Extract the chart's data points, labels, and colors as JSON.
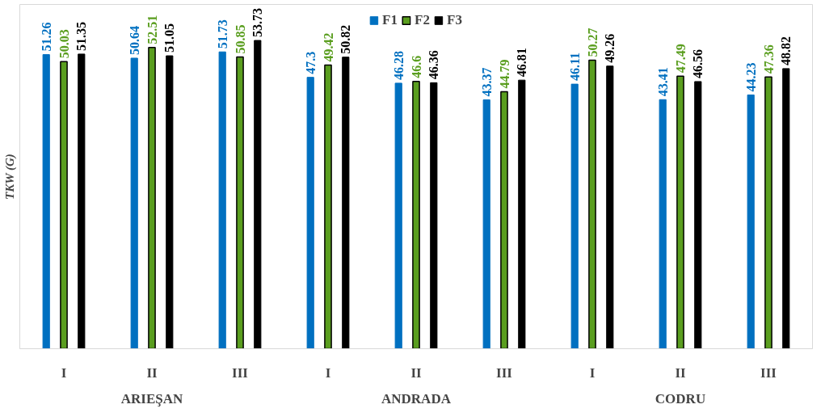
{
  "chart_data": {
    "type": "bar",
    "ylabel": "TKW (G)",
    "categories": [
      "I",
      "II",
      "III",
      "I",
      "II",
      "III",
      "I",
      "II",
      "III"
    ],
    "annotations": [
      "ARIEŞAN",
      "ANDRADA",
      "CODRU"
    ],
    "series": [
      {
        "name": "F1",
        "color": "#0070c0",
        "values": [
          51.26,
          50.64,
          51.73,
          47.3,
          46.28,
          43.37,
          46.11,
          43.41,
          44.23
        ]
      },
      {
        "name": "F2",
        "color": "#5a9e1f",
        "values": [
          50.03,
          52.51,
          50.85,
          49.42,
          46.6,
          44.79,
          50.27,
          47.49,
          47.36
        ]
      },
      {
        "name": "F3",
        "color": "#000000",
        "values": [
          51.35,
          51.05,
          53.73,
          50.82,
          46.36,
          46.81,
          49.26,
          46.56,
          48.82
        ]
      }
    ],
    "ylim": [
      0,
      60
    ],
    "data_labels": true,
    "legend": "top",
    "grid": false
  }
}
